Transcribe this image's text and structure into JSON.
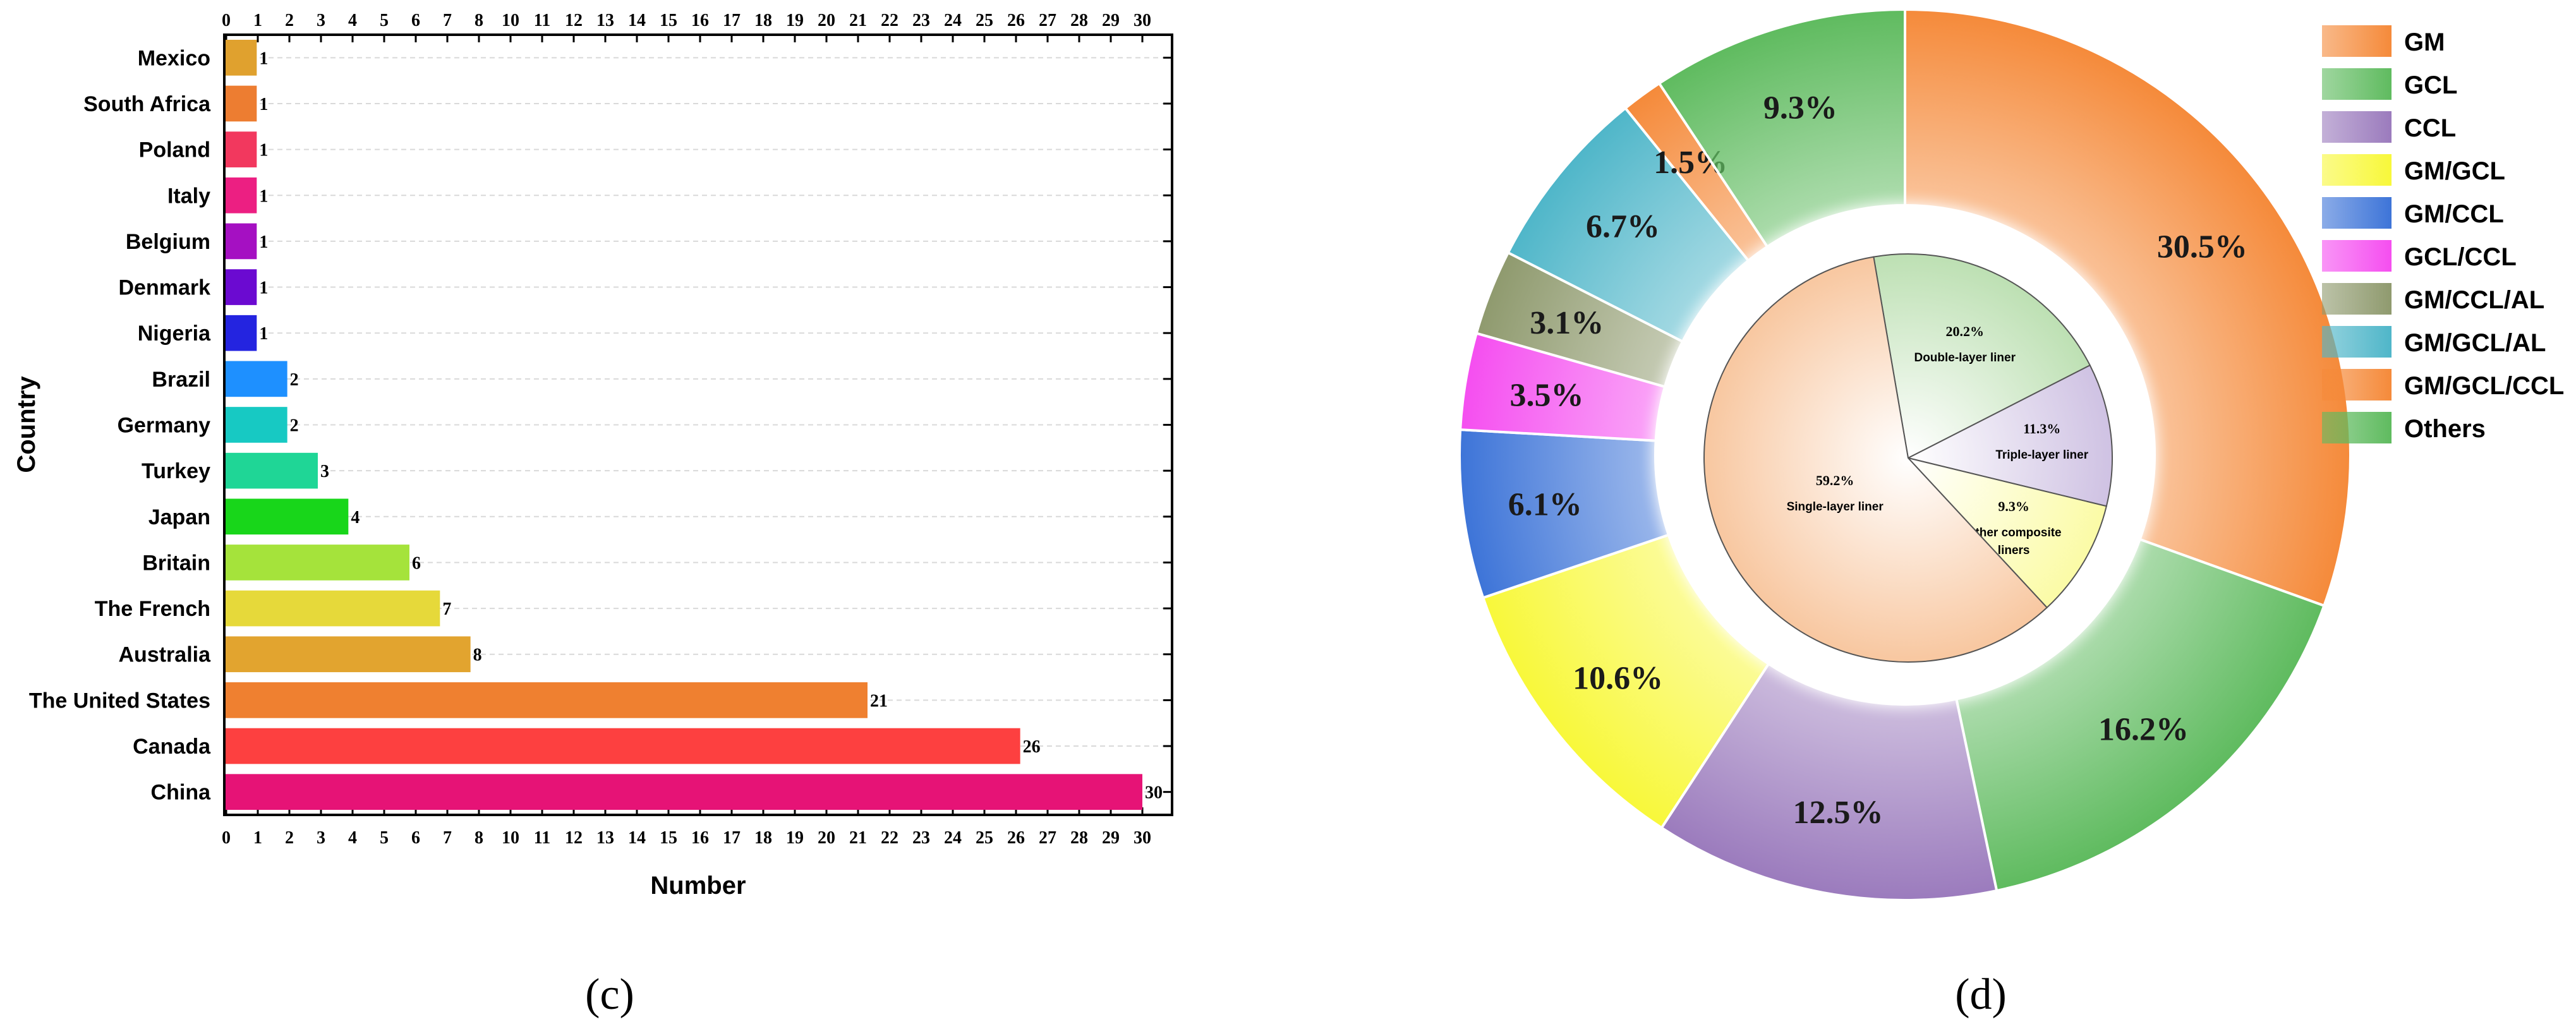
{
  "chart_data": [
    {
      "type": "bar",
      "orientation": "horizontal",
      "panel_label": "(c)",
      "xlabel": "Number",
      "ylabel": "Country",
      "xlim": [
        0,
        31.5
      ],
      "x_ticks": [
        "0",
        "1",
        "2",
        "3",
        "4",
        "5",
        "6",
        "7",
        "8",
        "10",
        "11",
        "12",
        "13",
        "14",
        "15",
        "16",
        "17",
        "18",
        "19",
        "20",
        "21",
        "22",
        "23",
        "24",
        "25",
        "26",
        "27",
        "28",
        "29",
        "30"
      ],
      "grid": "horizontal dashed",
      "categories": [
        "Mexico",
        "South Africa",
        "Poland",
        "Italy",
        "Belgium",
        "Denmark",
        "Nigeria",
        "Brazil",
        "Germany",
        "Turkey",
        "Japan",
        "Britain",
        "The French",
        "Australia",
        "The United States",
        "Canada",
        "China"
      ],
      "values": [
        1,
        1,
        1,
        1,
        1,
        1,
        1,
        2,
        2,
        3,
        4,
        6,
        7,
        8,
        21,
        26,
        30
      ],
      "value_labels": [
        "1",
        "1",
        "1",
        "1",
        "1",
        "1",
        "1",
        "2",
        "2",
        "3",
        "4",
        "6",
        "7",
        "8",
        "21",
        "26",
        "30"
      ],
      "colors": [
        "#e0a12e",
        "#ed7d31",
        "#f2385e",
        "#ec1f82",
        "#a510c2",
        "#6b0ad1",
        "#2424e0",
        "#1e90ff",
        "#17c9c3",
        "#1fd696",
        "#18d61a",
        "#a5e33b",
        "#e6d93a",
        "#e2a42f",
        "#ef8030",
        "#fd4040",
        "#e61376"
      ]
    },
    {
      "type": "pie",
      "variant": "nested-donut",
      "panel_label": "(d)",
      "legend_position": "right",
      "legend": [
        {
          "label": "GM",
          "color": "#f58a3a"
        },
        {
          "label": "GCL",
          "color": "#5fbb5f"
        },
        {
          "label": "CCL",
          "color": "#9b7bbd"
        },
        {
          "label": "GM/GCL",
          "color": "#f8f83a"
        },
        {
          "label": "GM/CCL",
          "color": "#3d74d8"
        },
        {
          "label": "GCL/CCL",
          "color": "#f54ef0"
        },
        {
          "label": "GM/CCL/AL",
          "color": "#8f9a6e"
        },
        {
          "label": "GM/GCL/AL",
          "color": "#4fb6c9"
        },
        {
          "label": "GM/GCL/CCL",
          "color": "#f58a3a"
        },
        {
          "label": "Others",
          "color": "#5fbb5f"
        }
      ],
      "outer_ring": [
        {
          "label": "GM",
          "value": 30.5,
          "text": "30.5%",
          "color": "#f58a3a"
        },
        {
          "label": "GCL",
          "value": 16.2,
          "text": "16.2%",
          "color": "#5fbb5f"
        },
        {
          "label": "CCL",
          "value": 12.5,
          "text": "12.5%",
          "color": "#9b7bbd"
        },
        {
          "label": "GM/GCL",
          "value": 10.6,
          "text": "10.6%",
          "color": "#f8f83a"
        },
        {
          "label": "GM/CCL",
          "value": 6.1,
          "text": "6.1%",
          "color": "#3d74d8"
        },
        {
          "label": "GCL/CCL",
          "value": 3.5,
          "text": "3.5%",
          "color": "#f54ef0"
        },
        {
          "label": "GM/CCL/AL",
          "value": 3.1,
          "text": "3.1%",
          "color": "#8f9a6e"
        },
        {
          "label": "GM/GCL/AL",
          "value": 6.7,
          "text": "6.7%",
          "color": "#4fb6c9"
        },
        {
          "label": "GM/GCL/CCL",
          "value": 1.5,
          "text": "1.5%",
          "color": "#f58a3a"
        },
        {
          "label": "Others",
          "value": 9.3,
          "text": "9.3%",
          "color": "#5fbb5f"
        }
      ],
      "inner_pie": [
        {
          "label": "Single-layer liner",
          "value": 59.2,
          "text": "59.2%",
          "color": "#f8c7a0"
        },
        {
          "label": "Double-layer liner",
          "value": 20.2,
          "text": "20.2%",
          "color": "#bde0b3"
        },
        {
          "label": "Triple-layer liner",
          "value": 11.3,
          "text": "11.3%",
          "color": "#cfc2e3"
        },
        {
          "label": "Other composite liners",
          "value": 9.3,
          "text": "9.3%",
          "color": "#fbfba6"
        }
      ]
    }
  ]
}
